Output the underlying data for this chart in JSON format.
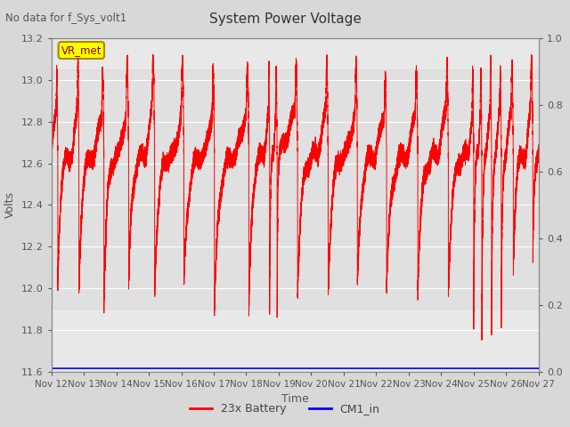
{
  "title": "System Power Voltage",
  "subtitle": "No data for f_Sys_volt1",
  "xlabel": "Time",
  "ylabel": "Volts",
  "ylim_left": [
    11.6,
    13.2
  ],
  "ylim_right": [
    0.0,
    1.0
  ],
  "yticks_left": [
    11.6,
    11.8,
    12.0,
    12.2,
    12.4,
    12.6,
    12.8,
    13.0,
    13.2
  ],
  "yticks_right": [
    0.0,
    0.2,
    0.4,
    0.6,
    0.8,
    1.0
  ],
  "xtick_labels": [
    "Nov 12",
    "Nov 13",
    "Nov 14",
    "Nov 15",
    "Nov 16",
    "Nov 17",
    "Nov 18",
    "Nov 19",
    "Nov 20",
    "Nov 21",
    "Nov 22",
    "Nov 23",
    "Nov 24",
    "Nov 25",
    "Nov 26",
    "Nov 27"
  ],
  "legend_entries": [
    "23x Battery",
    "CM1_in"
  ],
  "legend_colors": [
    "red",
    "blue"
  ],
  "vr_met_label": "VR_met",
  "bg_color": "#d8d8d8",
  "plot_bg_color": "#e8e8e8",
  "grid_color": "white",
  "battery_color": "red",
  "cm1_color": "blue",
  "n_days": 15,
  "shaded_band": [
    11.9,
    13.05
  ],
  "cm1_level": 11.615
}
